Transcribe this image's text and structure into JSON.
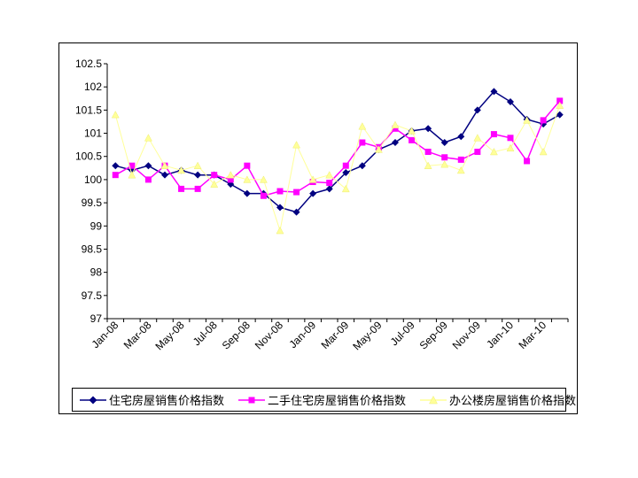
{
  "chart_data": {
    "type": "line",
    "title": "",
    "xlabel": "",
    "ylabel": "",
    "ylim": [
      97,
      102.5
    ],
    "ytick_step": 0.5,
    "yticks": [
      "97",
      "97.5",
      "98",
      "98.5",
      "99",
      "99.5",
      "100",
      "100.5",
      "101",
      "101.5",
      "102",
      "102.5"
    ],
    "categories": [
      "Jan-08",
      "Feb-08",
      "Mar-08",
      "Apr-08",
      "May-08",
      "Jun-08",
      "Jul-08",
      "Aug-08",
      "Sep-08",
      "Oct-08",
      "Nov-08",
      "Dec-08",
      "Jan-09",
      "Feb-09",
      "Mar-09",
      "Apr-09",
      "May-09",
      "Jun-09",
      "Jul-09",
      "Aug-09",
      "Sep-09",
      "Oct-09",
      "Nov-09",
      "Dec-09",
      "Jan-10",
      "Feb-10",
      "Mar-10",
      "Apr-10"
    ],
    "xtick_labels": [
      "Jan-08",
      "Mar-08",
      "May-08",
      "Jul-08",
      "Sep-08",
      "Nov-08",
      "Jan-09",
      "Mar-09",
      "May-09",
      "Jul-09",
      "Sep-09",
      "Nov-09",
      "Jan-10",
      "Mar-10"
    ],
    "grid": false,
    "legend_position": "bottom",
    "series": [
      {
        "name": "住宅房屋销售价格指数",
        "color": "#000080",
        "marker": "diamond",
        "values": [
          100.3,
          100.2,
          100.3,
          100.1,
          100.2,
          100.1,
          100.1,
          99.9,
          99.7,
          99.7,
          99.4,
          99.3,
          99.7,
          99.8,
          100.15,
          100.3,
          100.65,
          100.8,
          101.05,
          101.1,
          100.8,
          100.93,
          101.5,
          101.9,
          101.68,
          101.3,
          101.2,
          101.4
        ]
      },
      {
        "name": "二手住宅房屋销售价格指数",
        "color": "#FF00FF",
        "marker": "square",
        "values": [
          100.1,
          100.3,
          100.0,
          100.3,
          99.8,
          99.8,
          100.1,
          100.0,
          100.3,
          99.65,
          99.75,
          99.73,
          99.95,
          99.93,
          100.3,
          100.8,
          100.7,
          101.1,
          100.85,
          100.6,
          100.48,
          100.43,
          100.6,
          100.98,
          100.9,
          100.4,
          101.28,
          101.7
        ]
      },
      {
        "name": "办公楼房屋销售价格指数",
        "color": "#FFFF99",
        "marker": "triangle",
        "values": [
          101.4,
          100.1,
          100.9,
          100.3,
          100.2,
          100.3,
          99.9,
          100.1,
          100.0,
          100.0,
          98.9,
          100.75,
          100.0,
          100.1,
          99.8,
          101.15,
          100.65,
          101.18,
          101.05,
          100.3,
          100.33,
          100.2,
          100.9,
          100.6,
          100.68,
          101.28,
          100.6,
          101.6
        ]
      }
    ]
  }
}
